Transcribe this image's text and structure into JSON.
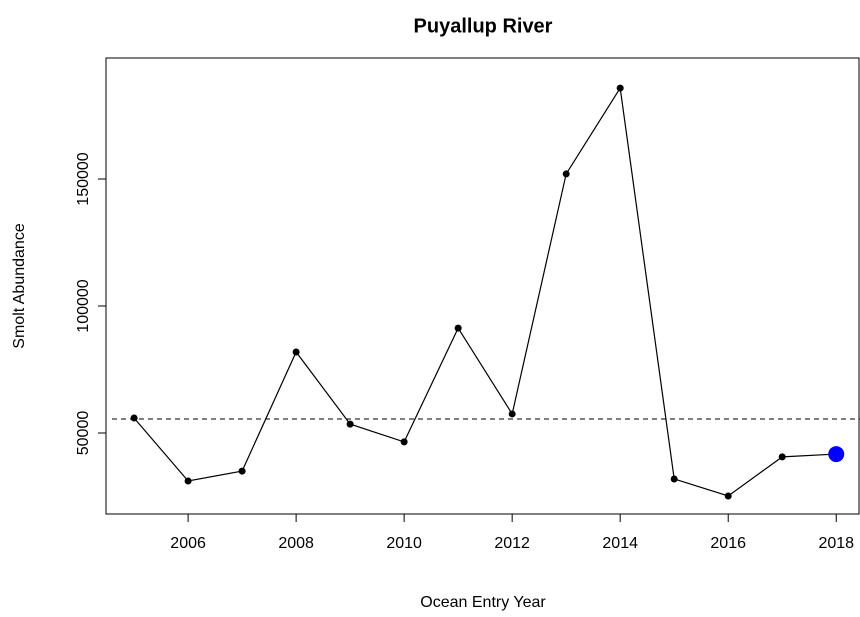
{
  "chart_data": {
    "type": "line",
    "title": "Puyallup River",
    "x_label": "Ocean Entry Year",
    "y_label": "Smolt Abundance",
    "x": [
      2005,
      2006,
      2007,
      2008,
      2009,
      2010,
      2011,
      2012,
      2013,
      2014,
      2015,
      2016,
      2017,
      2018
    ],
    "series": [
      {
        "name": "Smolt Abundance",
        "color": "#000000",
        "values": [
          55900,
          31100,
          35000,
          81900,
          53500,
          46500,
          91300,
          57500,
          152000,
          185800,
          31900,
          25200,
          40600,
          41700
        ]
      }
    ],
    "highlight_color": "#0000ff",
    "reference_line": 55500,
    "xlim": [
      2004.48,
      2018.44
    ],
    "xticks": [
      2006,
      2008,
      2010,
      2012,
      2014,
      2016,
      2018
    ],
    "ylim": [
      18110,
      197640
    ],
    "yticks": [
      50000,
      100000,
      150000
    ]
  }
}
